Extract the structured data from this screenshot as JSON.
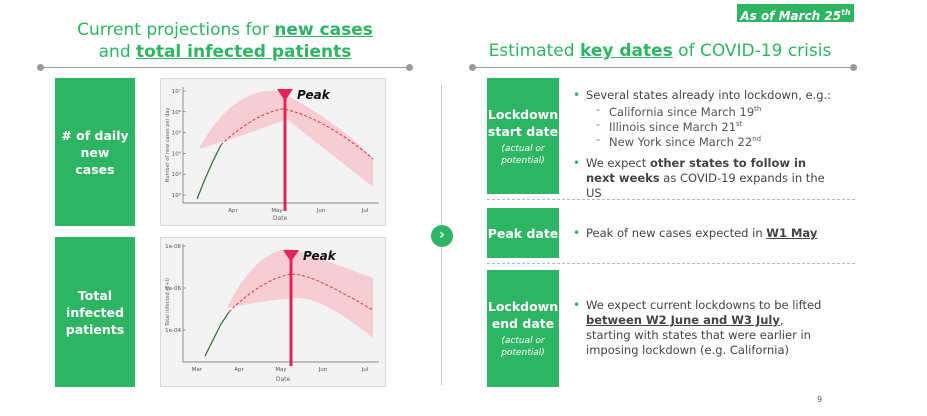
{
  "badge": {
    "text": "As of March 25",
    "sup": "th"
  },
  "left": {
    "title_pre": "Current projections for ",
    "title_u1": "new cases",
    "title_mid": "and ",
    "title_u2": "total infected patients",
    "box1": "# of daily new cases",
    "box2": "Total infected patients"
  },
  "chart1": {
    "peak_label": "Peak",
    "ylabel": "Number of new cases per day",
    "xlabel": "Date",
    "yticks": [
      "10⁷",
      "10⁶",
      "10⁵",
      "10⁴",
      "10³",
      "10²"
    ],
    "xticks": [
      "Apr",
      "May",
      "Jun",
      "Jul"
    ]
  },
  "chart2": {
    "peak_label": "Peak",
    "ylabel": "Total infected (E+I)",
    "xlabel": "Date",
    "yticks": [
      "1e-08",
      "1e-06",
      "1e-04"
    ],
    "xticks": [
      "Mar",
      "Apr",
      "May",
      "Jun",
      "Jul"
    ]
  },
  "right": {
    "title_pre": "Estimated ",
    "title_u": "key dates",
    "title_post": " of COVID-19 crisis",
    "row1": {
      "label": "Lockdown start date",
      "sub": "(actual or potential)",
      "bullet1": "Several states already into lockdown, e.g.:",
      "d1": "California since March 19",
      "d1sup": "th",
      "d2": "Illinois since March 21",
      "d2sup": "st",
      "d3": "New York since March 22",
      "d3sup": "nd",
      "bullet2_pre": "We expect ",
      "bullet2_bold": "other states to follow in next weeks",
      "bullet2_post": " as COVID-19 expands in the US"
    },
    "row2": {
      "label": "Peak date",
      "bullet_pre": "Peak of new cases expected in ",
      "bullet_u": "W1 May"
    },
    "row3": {
      "label": "Lockdown end date",
      "sub": "(actual or potential)",
      "bullet_pre": "We expect current lockdowns to be lifted ",
      "bullet_u": "between W2 June and W3 July",
      "bullet_post": ", starting with states that were earlier in imposing lockdown (e.g. California)"
    }
  },
  "footer": {
    "page": "9"
  },
  "colors": {
    "accent": "#2db563",
    "peak": "#e0245e",
    "band": "#f6c9cf",
    "median": "#d63a3a"
  }
}
